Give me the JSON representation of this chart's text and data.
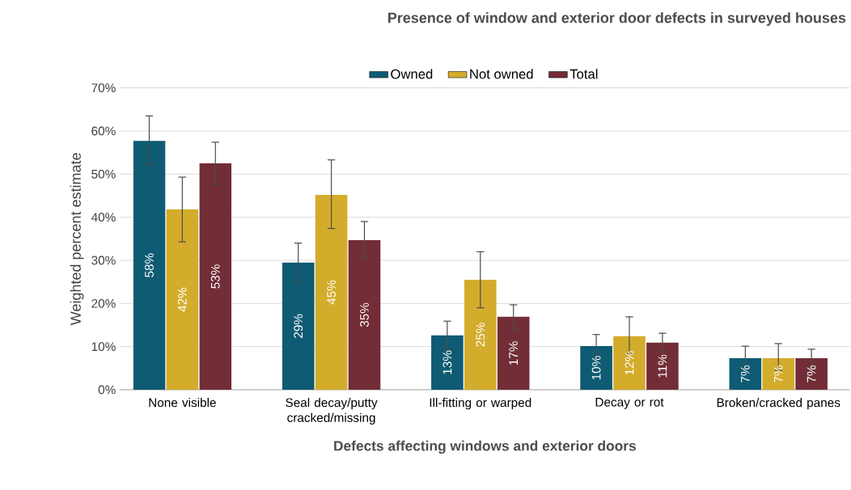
{
  "chart_data": {
    "type": "bar",
    "title": "Presence of window and exterior door defects in surveyed houses",
    "xlabel": "Defects affecting windows and exterior doors",
    "ylabel": "Weighted percent estimate",
    "categories": [
      "None visible",
      "Seal decay/putty cracked/missing",
      "Ill-fitting or warped",
      "Decay or rot",
      "Broken/cracked panes"
    ],
    "series": [
      {
        "name": "Owned",
        "color": "#0e5b73",
        "values": [
          57.7,
          29.5,
          12.6,
          10.1,
          7.3
        ],
        "value_labels": [
          "58%",
          "29%",
          "13%",
          "10%",
          "7%"
        ],
        "errors": [
          [
            52.2,
            63.5
          ],
          [
            24.8,
            34.0
          ],
          [
            9.2,
            15.9
          ],
          [
            7.9,
            12.8
          ],
          [
            4.9,
            10.1
          ]
        ]
      },
      {
        "name": "Not owned",
        "color": "#d4ac2c",
        "values": [
          41.8,
          45.2,
          25.5,
          12.4,
          7.3
        ],
        "value_labels": [
          "42%",
          "45%",
          "25%",
          "12%",
          "7%"
        ],
        "errors": [
          [
            34.3,
            49.3
          ],
          [
            37.4,
            53.3
          ],
          [
            19.0,
            32.0
          ],
          [
            8.3,
            16.9
          ],
          [
            4.5,
            10.7
          ]
        ]
      },
      {
        "name": "Total",
        "color": "#722d37",
        "values": [
          52.5,
          34.7,
          16.9,
          10.9,
          7.3
        ],
        "value_labels": [
          "53%",
          "35%",
          "17%",
          "11%",
          "7%"
        ],
        "errors": [
          [
            47.6,
            57.4
          ],
          [
            30.5,
            39.0
          ],
          [
            13.8,
            19.7
          ],
          [
            8.8,
            13.1
          ],
          [
            5.1,
            9.4
          ]
        ]
      }
    ],
    "ylim": [
      0,
      70
    ],
    "yticks": [
      {
        "value": 0,
        "label": "0%"
      },
      {
        "value": 10,
        "label": "10%"
      },
      {
        "value": 20,
        "label": "20%"
      },
      {
        "value": 30,
        "label": "30%"
      },
      {
        "value": 40,
        "label": "40%"
      },
      {
        "value": 50,
        "label": "50%"
      },
      {
        "value": 60,
        "label": "60%"
      },
      {
        "value": 70,
        "label": "70%"
      }
    ],
    "grid": "y",
    "legend": "top"
  }
}
